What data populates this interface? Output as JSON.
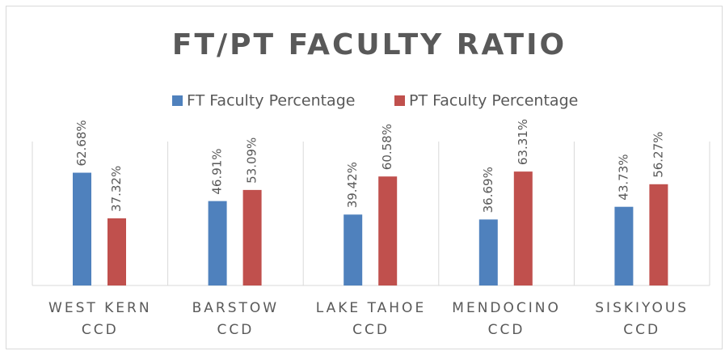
{
  "chart_data": {
    "type": "bar",
    "title": "FT/PT FACULTY RATIO",
    "categories": [
      "WEST KERN CCD",
      "BARSTOW CCD",
      "LAKE TAHOE CCD",
      "MENDOCINO CCD",
      "SISKIYOUS CCD"
    ],
    "series": [
      {
        "name": "FT Faculty Percentage",
        "color": "#4f81bd",
        "values": [
          62.68,
          46.91,
          39.42,
          36.69,
          43.73
        ],
        "value_labels": [
          "62.68%",
          "46.91%",
          "39.42%",
          "36.69%",
          "43.73%"
        ]
      },
      {
        "name": "PT Faculty Percentage",
        "color": "#c0504d",
        "values": [
          37.32,
          53.09,
          60.58,
          63.31,
          56.27
        ],
        "value_labels": [
          "37.32%",
          "53.09%",
          "60.58%",
          "63.31%",
          "56.27%"
        ]
      }
    ],
    "ylim": [
      0,
      80
    ],
    "legend": "top"
  }
}
